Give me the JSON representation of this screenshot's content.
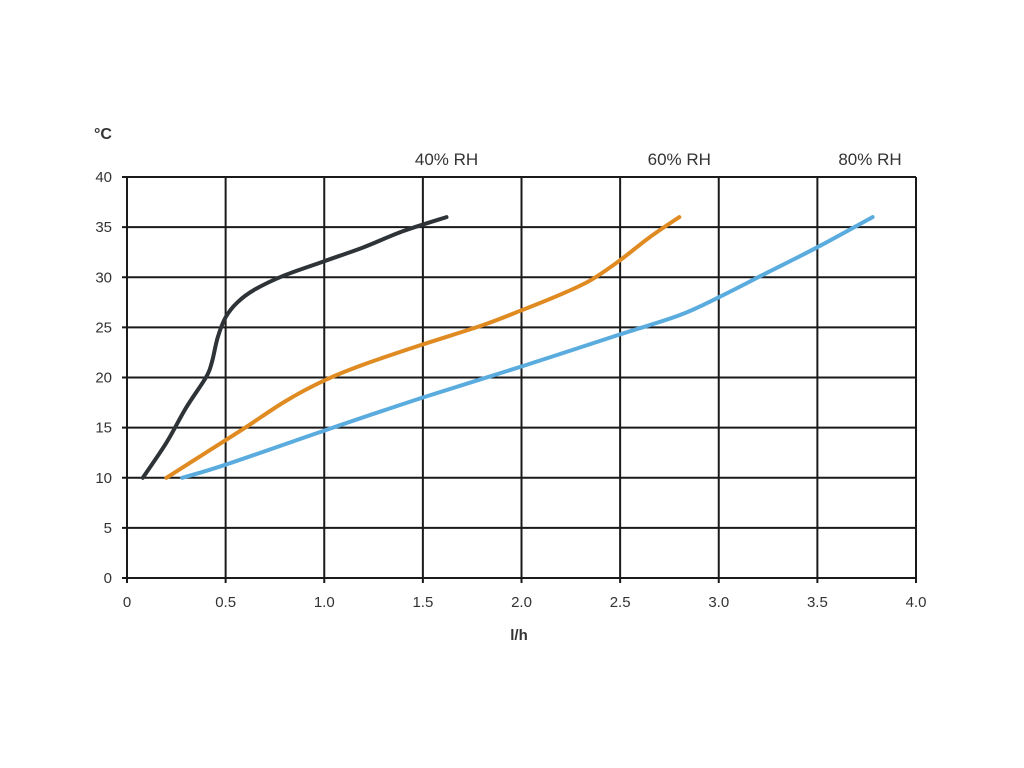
{
  "chart_data": {
    "type": "line",
    "title": "",
    "xlabel": "l/h",
    "ylabel": "°C",
    "xlim": [
      0,
      4
    ],
    "ylim": [
      0,
      40
    ],
    "grid": true,
    "x_ticks": [
      0,
      0.5,
      1.0,
      1.5,
      2.0,
      2.5,
      3.0,
      3.5,
      4.0
    ],
    "x_tick_labels": [
      "0",
      "0.5",
      "1.0",
      "1.5",
      "2.0",
      "2.5",
      "3.0",
      "3.5",
      "4.0"
    ],
    "y_ticks": [
      0,
      5,
      10,
      15,
      20,
      25,
      30,
      35,
      40
    ],
    "y_tick_labels": [
      "0",
      "5",
      "10",
      "15",
      "20",
      "25",
      "30",
      "35",
      "40"
    ],
    "series": [
      {
        "name": "40% RH",
        "color": "#2e3338",
        "x": [
          0.08,
          0.2,
          0.3,
          0.4,
          0.43,
          0.46,
          0.5,
          0.56,
          0.65,
          0.8,
          1.0,
          1.2,
          1.4,
          1.62
        ],
        "y": [
          10,
          13.5,
          17,
          20,
          21.5,
          24,
          26,
          27.5,
          28.8,
          30.2,
          31.6,
          33,
          34.6,
          36
        ]
      },
      {
        "name": "60% RH",
        "color": "#e08a22",
        "x": [
          0.2,
          0.4,
          0.6,
          0.8,
          1.0,
          1.2,
          1.5,
          1.8,
          2.0,
          2.2,
          2.35,
          2.5,
          2.65,
          2.8
        ],
        "y": [
          10,
          12.5,
          15,
          17.6,
          19.7,
          21.3,
          23.3,
          25.2,
          26.7,
          28.3,
          29.7,
          31.7,
          34,
          36
        ]
      },
      {
        "name": "80% RH",
        "color": "#5aacdf",
        "x": [
          0.28,
          0.5,
          1.0,
          1.5,
          2.0,
          2.5,
          2.8,
          3.0,
          3.25,
          3.5,
          3.78
        ],
        "y": [
          10,
          11.3,
          14.7,
          18,
          21.1,
          24.3,
          26.2,
          28,
          30.5,
          33,
          36
        ]
      }
    ]
  }
}
